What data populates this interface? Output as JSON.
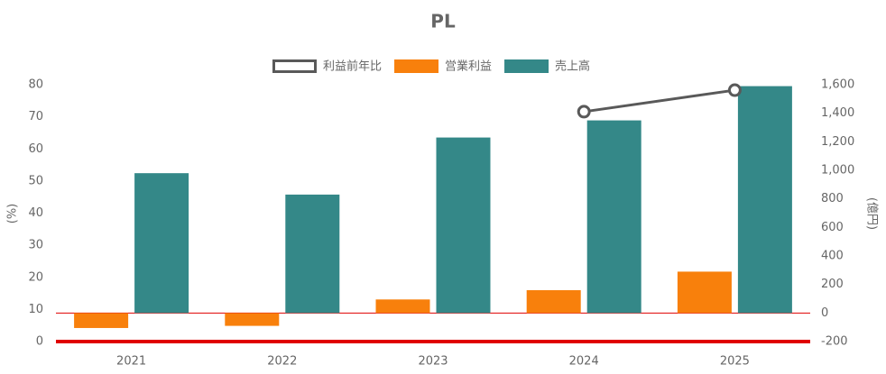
{
  "chart_data": {
    "type": "bar",
    "title": "PL",
    "categories": [
      "2021",
      "2022",
      "2023",
      "2024",
      "2025"
    ],
    "series": [
      {
        "name": "利益前年比",
        "type": "line",
        "color": "#595959",
        "axis": "y",
        "values": [
          null,
          null,
          null,
          71.6,
          78.3
        ]
      },
      {
        "name": "営業利益",
        "type": "bar",
        "color": "#f8800c",
        "axis": "y2",
        "values": [
          -105,
          -90,
          95,
          160,
          290
        ]
      },
      {
        "name": "売上高",
        "type": "bar",
        "color": "#348888",
        "axis": "y2",
        "values": [
          980,
          830,
          1230,
          1350,
          1590
        ]
      }
    ],
    "ylabel": "(%)",
    "y2label": "(億円)",
    "ylim": [
      0,
      80
    ],
    "yticks": [
      0,
      10,
      20,
      30,
      40,
      50,
      60,
      70,
      80
    ],
    "y2lim": [
      -200,
      1600
    ],
    "y2ticks": [
      -200,
      0,
      200,
      400,
      600,
      800,
      {
        "value": 1000,
        "label": "1,000"
      },
      {
        "value": 1200,
        "label": "1,200"
      },
      {
        "value": 1400,
        "label": "1,400"
      },
      {
        "value": 1600,
        "label": "1,600"
      }
    ],
    "legend": "top",
    "grid": false
  }
}
